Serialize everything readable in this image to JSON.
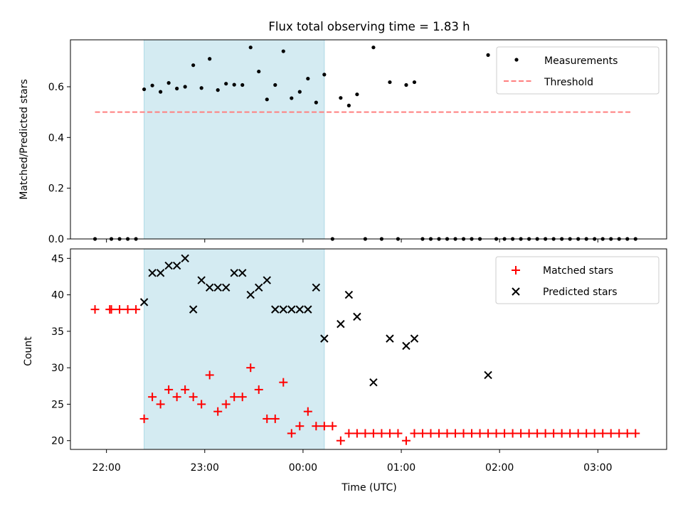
{
  "title": "Flux total observing time = 1.83 h",
  "colors": {
    "band": "#add8e6",
    "matched": "#ff0000",
    "predicted": "#000000",
    "measurement": "#000000",
    "threshold": "#ff7f7f"
  },
  "chart_data": [
    {
      "type": "scatter",
      "panel": "top",
      "ylabel": "Matched/Predicted stars",
      "xlabel": "",
      "xlim": [
        "21:38",
        "03:42"
      ],
      "ylim": [
        0,
        0.785
      ],
      "ytick_labels": [
        "0.0",
        "0.2",
        "0.4",
        "0.6"
      ],
      "legend": {
        "placement": "top-right",
        "entries": [
          {
            "label": "Measurements",
            "marker": "dot"
          },
          {
            "label": "Threshold",
            "marker": "dashed-line"
          }
        ]
      },
      "shaded_interval": [
        "22:23",
        "00:13"
      ],
      "threshold": {
        "value": 0.5,
        "x_range": [
          "21:53",
          "03:21"
        ]
      },
      "series": [
        {
          "name": "Measurements",
          "points": [
            [
              "21:53",
              0.0
            ],
            [
              "22:03",
              0.0
            ],
            [
              "22:08",
              0.0
            ],
            [
              "22:13",
              0.0
            ],
            [
              "22:18",
              0.0
            ],
            [
              "22:23",
              0.59
            ],
            [
              "22:28",
              0.605
            ],
            [
              "22:33",
              0.58
            ],
            [
              "22:38",
              0.615
            ],
            [
              "22:43",
              0.593
            ],
            [
              "22:48",
              0.6
            ],
            [
              "22:53",
              0.685
            ],
            [
              "22:58",
              0.595
            ],
            [
              "23:03",
              0.71
            ],
            [
              "23:08",
              0.587
            ],
            [
              "23:13",
              0.612
            ],
            [
              "23:18",
              0.608
            ],
            [
              "23:23",
              0.607
            ],
            [
              "23:28",
              0.755
            ],
            [
              "23:33",
              0.66
            ],
            [
              "23:38",
              0.55
            ],
            [
              "23:43",
              0.607
            ],
            [
              "23:48",
              0.74
            ],
            [
              "23:53",
              0.555
            ],
            [
              "23:58",
              0.58
            ],
            [
              "00:03",
              0.632
            ],
            [
              "00:08",
              0.538
            ],
            [
              "00:13",
              0.648
            ],
            [
              "00:18",
              0.0
            ],
            [
              "00:23",
              0.556
            ],
            [
              "00:28",
              0.526
            ],
            [
              "00:33",
              0.57
            ],
            [
              "00:38",
              0.0
            ],
            [
              "00:43",
              0.755
            ],
            [
              "00:48",
              0.0
            ],
            [
              "00:53",
              0.618
            ],
            [
              "00:58",
              0.0
            ],
            [
              "01:03",
              0.607
            ],
            [
              "01:08",
              0.618
            ],
            [
              "01:13",
              0.0
            ],
            [
              "01:18",
              0.0
            ],
            [
              "01:23",
              0.0
            ],
            [
              "01:28",
              0.0
            ],
            [
              "01:33",
              0.0
            ],
            [
              "01:38",
              0.0
            ],
            [
              "01:43",
              0.0
            ],
            [
              "01:48",
              0.0
            ],
            [
              "01:53",
              0.725
            ],
            [
              "01:58",
              0.0
            ],
            [
              "02:03",
              0.0
            ],
            [
              "02:08",
              0.0
            ],
            [
              "02:13",
              0.0
            ],
            [
              "02:18",
              0.0
            ],
            [
              "02:23",
              0.0
            ],
            [
              "02:28",
              0.0
            ],
            [
              "02:33",
              0.0
            ],
            [
              "02:38",
              0.0
            ],
            [
              "02:43",
              0.0
            ],
            [
              "02:48",
              0.0
            ],
            [
              "02:53",
              0.0
            ],
            [
              "02:58",
              0.0
            ],
            [
              "03:03",
              0.0
            ],
            [
              "03:08",
              0.0
            ],
            [
              "03:13",
              0.0
            ],
            [
              "03:18",
              0.0
            ],
            [
              "03:23",
              0.0
            ]
          ]
        }
      ]
    },
    {
      "type": "scatter",
      "panel": "bottom",
      "ylabel": "Count",
      "xlabel": "Time (UTC)",
      "xlim": [
        "21:38",
        "03:42"
      ],
      "ylim": [
        18.8,
        46.3
      ],
      "ytick_labels": [
        "20",
        "25",
        "30",
        "35",
        "40",
        "45"
      ],
      "xtick_labels": [
        "22:00",
        "23:00",
        "00:00",
        "01:00",
        "02:00",
        "03:00"
      ],
      "legend": {
        "placement": "top-right",
        "entries": [
          {
            "label": "Matched stars",
            "marker": "plus"
          },
          {
            "label": "Predicted stars",
            "marker": "x"
          }
        ]
      },
      "shaded_interval": [
        "22:23",
        "00:13"
      ],
      "series": [
        {
          "name": "Matched stars",
          "points": [
            [
              "21:53",
              38
            ],
            [
              "22:02",
              38
            ],
            [
              "22:03",
              38
            ],
            [
              "22:08",
              38
            ],
            [
              "22:13",
              38
            ],
            [
              "22:18",
              38
            ],
            [
              "22:23",
              23
            ],
            [
              "22:28",
              26
            ],
            [
              "22:33",
              25
            ],
            [
              "22:38",
              27
            ],
            [
              "22:43",
              26
            ],
            [
              "22:48",
              27
            ],
            [
              "22:53",
              26
            ],
            [
              "22:58",
              25
            ],
            [
              "23:03",
              29
            ],
            [
              "23:08",
              24
            ],
            [
              "23:13",
              25
            ],
            [
              "23:18",
              26
            ],
            [
              "23:23",
              26
            ],
            [
              "23:28",
              30
            ],
            [
              "23:33",
              27
            ],
            [
              "23:38",
              23
            ],
            [
              "23:43",
              23
            ],
            [
              "23:48",
              28
            ],
            [
              "23:53",
              21
            ],
            [
              "23:58",
              22
            ],
            [
              "00:03",
              24
            ],
            [
              "00:08",
              22
            ],
            [
              "00:13",
              22
            ],
            [
              "00:18",
              22
            ],
            [
              "00:23",
              20
            ],
            [
              "00:28",
              21
            ],
            [
              "00:33",
              21
            ],
            [
              "00:38",
              21
            ],
            [
              "00:43",
              21
            ],
            [
              "00:48",
              21
            ],
            [
              "00:53",
              21
            ],
            [
              "00:58",
              21
            ],
            [
              "01:03",
              20
            ],
            [
              "01:08",
              21
            ],
            [
              "01:13",
              21
            ],
            [
              "01:18",
              21
            ],
            [
              "01:23",
              21
            ],
            [
              "01:28",
              21
            ],
            [
              "01:33",
              21
            ],
            [
              "01:38",
              21
            ],
            [
              "01:43",
              21
            ],
            [
              "01:48",
              21
            ],
            [
              "01:53",
              21
            ],
            [
              "01:58",
              21
            ],
            [
              "02:03",
              21
            ],
            [
              "02:08",
              21
            ],
            [
              "02:13",
              21
            ],
            [
              "02:18",
              21
            ],
            [
              "02:23",
              21
            ],
            [
              "02:28",
              21
            ],
            [
              "02:33",
              21
            ],
            [
              "02:38",
              21
            ],
            [
              "02:43",
              21
            ],
            [
              "02:48",
              21
            ],
            [
              "02:53",
              21
            ],
            [
              "02:58",
              21
            ],
            [
              "03:03",
              21
            ],
            [
              "03:08",
              21
            ],
            [
              "03:13",
              21
            ],
            [
              "03:18",
              21
            ],
            [
              "03:23",
              21
            ]
          ]
        },
        {
          "name": "Predicted stars",
          "points": [
            [
              "22:23",
              39
            ],
            [
              "22:28",
              43
            ],
            [
              "22:33",
              43
            ],
            [
              "22:38",
              44
            ],
            [
              "22:43",
              44
            ],
            [
              "22:48",
              45
            ],
            [
              "22:53",
              38
            ],
            [
              "22:58",
              42
            ],
            [
              "23:03",
              41
            ],
            [
              "23:08",
              41
            ],
            [
              "23:13",
              41
            ],
            [
              "23:18",
              43
            ],
            [
              "23:23",
              43
            ],
            [
              "23:28",
              40
            ],
            [
              "23:33",
              41
            ],
            [
              "23:38",
              42
            ],
            [
              "23:43",
              38
            ],
            [
              "23:48",
              38
            ],
            [
              "23:53",
              38
            ],
            [
              "23:58",
              38
            ],
            [
              "00:03",
              38
            ],
            [
              "00:08",
              41
            ],
            [
              "00:13",
              34
            ],
            [
              "00:23",
              36
            ],
            [
              "00:28",
              40
            ],
            [
              "00:33",
              37
            ],
            [
              "00:43",
              28
            ],
            [
              "00:53",
              34
            ],
            [
              "01:03",
              33
            ],
            [
              "01:08",
              34
            ],
            [
              "01:53",
              29
            ]
          ]
        }
      ]
    }
  ]
}
